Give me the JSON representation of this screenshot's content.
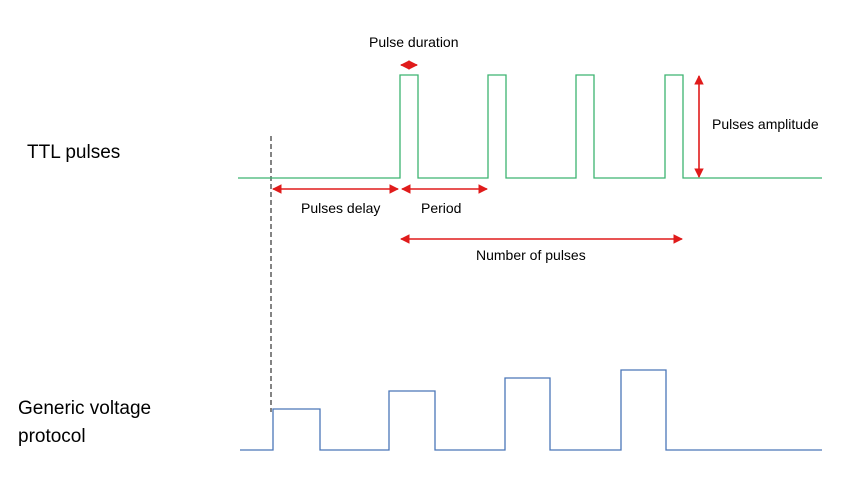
{
  "labels": {
    "ttl": "TTL pulses",
    "generic_line1": "Generic voltage",
    "generic_line2": "protocol",
    "pulse_duration": "Pulse duration",
    "pulses_amplitude": "Pulses amplitude",
    "pulses_delay": "Pulses delay",
    "period": "Period",
    "number_of_pulses": "Number of pulses"
  },
  "colors": {
    "ttl_trace": "#3cb371",
    "generic_trace": "#4a76b8",
    "annotation_arrow": "#e01b1b",
    "guide_line": "#333333"
  }
}
